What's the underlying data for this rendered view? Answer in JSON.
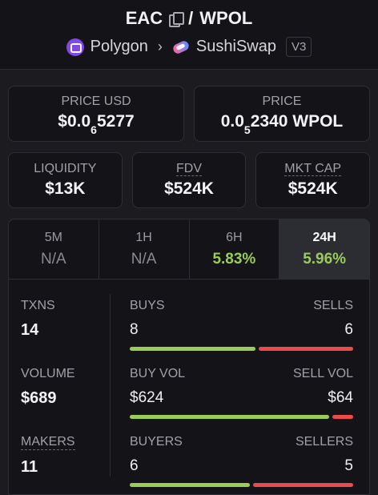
{
  "header": {
    "base": "EAC",
    "sep": "/",
    "quote": "WPOL",
    "chain": "Polygon",
    "dex": "SushiSwap",
    "version": "V3"
  },
  "prices": {
    "usd_label": "PRICE USD",
    "usd_prefix": "$0.0",
    "usd_zeros": "6",
    "usd_digits": "5277",
    "native_label": "PRICE",
    "native_prefix": "0.0",
    "native_zeros": "5",
    "native_digits": "2340 WPOL"
  },
  "metrics": [
    {
      "label": "LIQUIDITY",
      "value": "$13K"
    },
    {
      "label": "FDV",
      "value": "$524K"
    },
    {
      "label": "MKT CAP",
      "value": "$524K"
    }
  ],
  "tabs": [
    {
      "label": "5M",
      "value": "N/A"
    },
    {
      "label": "1H",
      "value": "N/A"
    },
    {
      "label": "6H",
      "value": "5.83%"
    },
    {
      "label": "24H",
      "value": "5.96%"
    }
  ],
  "active_tab": "24H",
  "stats": {
    "txns": {
      "label": "TXNS",
      "value": "14"
    },
    "volume": {
      "label": "VOLUME",
      "value": "$689"
    },
    "makers": {
      "label": "MAKERS",
      "value": "11"
    }
  },
  "bars": {
    "buys": {
      "left_label": "BUYS",
      "right_label": "SELLS",
      "left_value": "8",
      "right_value": "6",
      "left_fraction": 0.571
    },
    "vol": {
      "left_label": "BUY VOL",
      "right_label": "SELL VOL",
      "left_value": "$624",
      "right_value": "$64",
      "left_fraction": 0.907
    },
    "buyers": {
      "left_label": "BUYERS",
      "right_label": "SELLERS",
      "left_value": "6",
      "right_value": "5",
      "left_fraction": 0.545
    }
  },
  "colors": {
    "positive": "#9acd57",
    "negative": "#ea4b4b",
    "polygon": "#8247e5"
  }
}
